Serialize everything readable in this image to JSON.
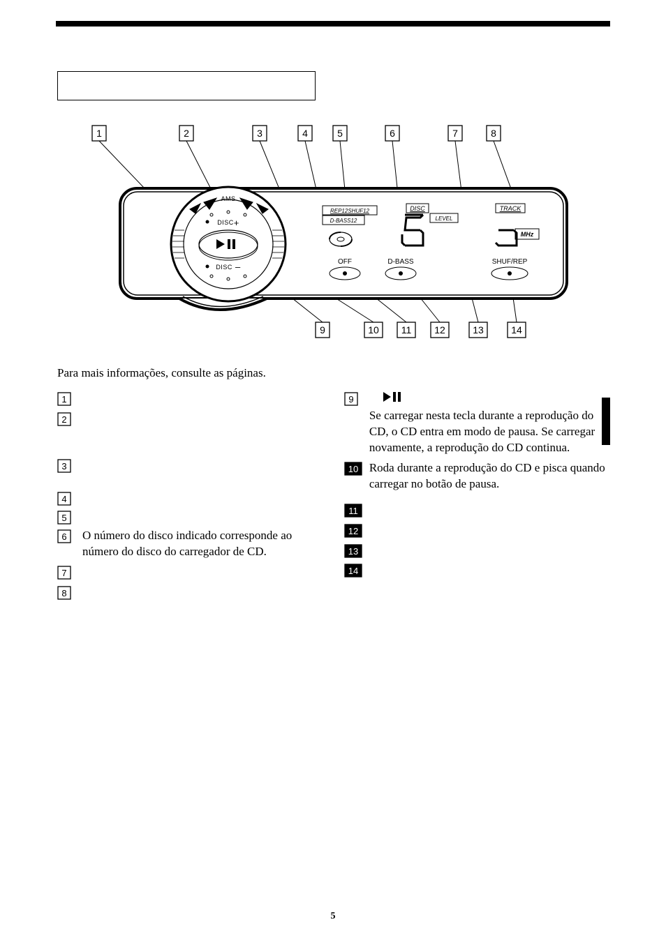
{
  "page_number": "5",
  "intro": "Para mais informações, consulte as páginas.",
  "diagram": {
    "title": "",
    "top_callouts": [
      1,
      2,
      3,
      4,
      5,
      6,
      7,
      8
    ],
    "bottom_callouts": [
      9,
      10,
      11,
      12,
      13,
      14
    ],
    "device_labels": {
      "ams": "AMS",
      "disc_plus": "DISC",
      "disc_minus": "DISC",
      "rep_shuf": "REP12SHUF12",
      "dbass12": "D-BASS12",
      "disc": "DISC",
      "level": "LEVEL",
      "track": "TRACK",
      "mhz": "MHz"
    },
    "buttons": {
      "off": "OFF",
      "dbass": "D-BASS",
      "shufrep": "SHUF/REP"
    },
    "colors": {
      "stroke": "#000000",
      "fill_bg": "#ffffff",
      "callout_fill": "#ffffff"
    }
  },
  "left_items": [
    {
      "n": 1,
      "text": ""
    },
    {
      "n": 2,
      "text": ""
    },
    {
      "n": 3,
      "text": ""
    },
    {
      "n": 4,
      "text": ""
    },
    {
      "n": 5,
      "text": ""
    },
    {
      "n": 6,
      "text": "O número do disco indicado corresponde ao número do disco do carregador de CD."
    },
    {
      "n": 7,
      "text": ""
    },
    {
      "n": 8,
      "text": ""
    }
  ],
  "right_items": [
    {
      "n": 9,
      "text": "Se carregar nesta tecla durante a reprodução do CD, o CD entra em modo de pausa. Se carregar novamente, a reprodução do CD continua.",
      "has_icon": true
    },
    {
      "n": 10,
      "text": "Roda durante a reprodução do CD e pisca quando carregar no botão de pausa."
    },
    {
      "n": 11,
      "text": ""
    },
    {
      "n": 12,
      "text": ""
    },
    {
      "n": 13,
      "text": ""
    },
    {
      "n": 14,
      "text": ""
    }
  ],
  "spacing": {
    "item2_gap": 44,
    "item5_gap": 4
  }
}
